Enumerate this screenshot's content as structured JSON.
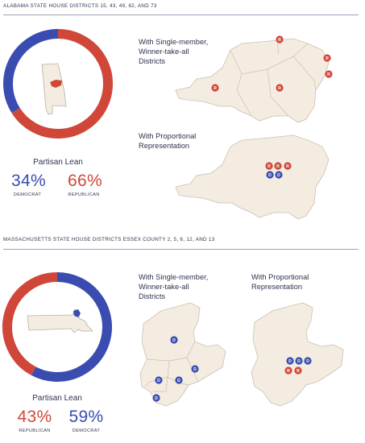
{
  "colors": {
    "democrat": "#3a4cb0",
    "republican": "#d0473a",
    "district_fill": "#f4ece0",
    "district_stroke": "#c9c0b4",
    "ink": "#2e3350",
    "rule": "#9aa3b8"
  },
  "sections": [
    {
      "title": "ALABAMA STATE HOUSE DISTRICTS 15, 43, 49, 62, AND 73",
      "state_icon": "alabama-state-outline",
      "lean_title": "Partisan Lean",
      "stats": [
        {
          "value": "34%",
          "label": "DEMOCRAT",
          "party": "democrat"
        },
        {
          "value": "66%",
          "label": "REPUBLICAN",
          "party": "republican"
        }
      ],
      "maps": [
        {
          "title_lines": [
            "With Single-member,",
            "Winner-take-all",
            "Districts"
          ],
          "marker_letters": [
            "R",
            "R",
            "R",
            "R",
            "R"
          ]
        },
        {
          "title_lines": [
            "With Proportional",
            "Representation"
          ],
          "marker_letters": [
            "R",
            "R",
            "R",
            "D",
            "D"
          ]
        }
      ]
    },
    {
      "title": "MASSACHUSETTS STATE HOUSE DISTRICTS ESSEX COUNTY 2, 5, 6, 12, AND 13",
      "state_icon": "massachusetts-state-outline",
      "lean_title": "Partisan Lean",
      "stats": [
        {
          "value": "43%",
          "label": "REPUBLICAN",
          "party": "republican"
        },
        {
          "value": "59%",
          "label": "DEMOCRAT",
          "party": "democrat"
        }
      ],
      "maps": [
        {
          "title_lines": [
            "With Single-member,",
            "Winner-take-all",
            "Districts"
          ],
          "marker_letters": [
            "D",
            "D",
            "D",
            "D",
            "D"
          ]
        },
        {
          "title_lines": [
            "With Proportional",
            "Representation"
          ],
          "marker_letters": [
            "D",
            "D",
            "D",
            "R",
            "R"
          ]
        }
      ]
    }
  ],
  "chart_data": [
    {
      "type": "pie",
      "title": "Partisan Lean",
      "categories": [
        "Democrat",
        "Republican"
      ],
      "values": [
        34,
        66
      ]
    },
    {
      "type": "pie",
      "title": "Partisan Lean",
      "categories": [
        "Republican",
        "Democrat"
      ],
      "values": [
        43,
        59
      ]
    }
  ]
}
